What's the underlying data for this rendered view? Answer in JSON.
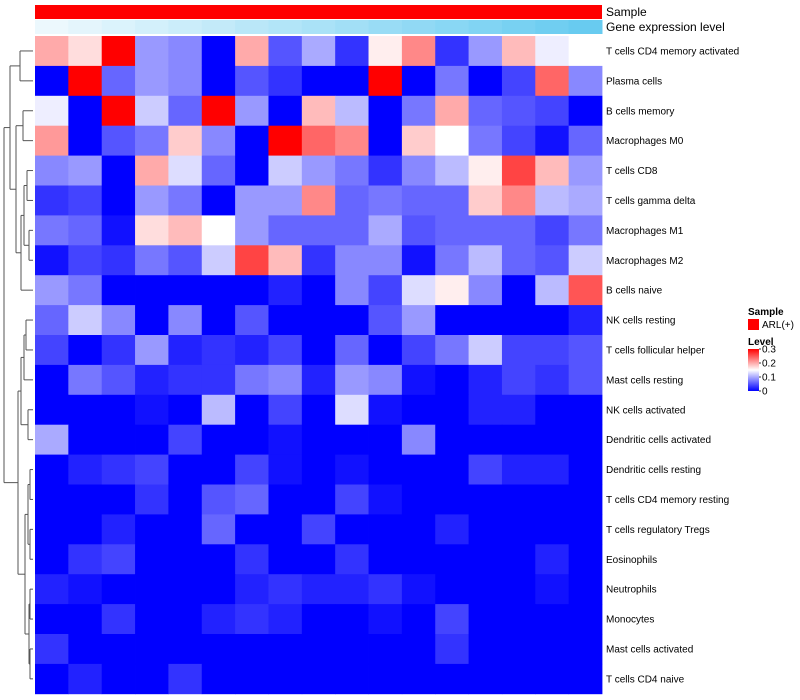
{
  "chart_data": {
    "type": "heatmap",
    "title": "",
    "annotation_rows": [
      {
        "label": "Sample",
        "color_key": "sample_bar"
      },
      {
        "label": "Gene expression level",
        "color_key": "expression_gradient"
      }
    ],
    "rows": [
      "T cells CD4 memory activated",
      "Plasma cells",
      "B cells memory",
      "Macrophages M0",
      "T cells CD8",
      "T cells gamma delta",
      "Macrophages M1",
      "Macrophages M2",
      "B cells naive",
      "NK cells resting",
      "T cells follicular helper",
      "Mast cells resting",
      "NK cells activated",
      "Dendritic cells activated",
      "Dendritic cells resting",
      "T cells CD4 memory resting",
      "T cells regulatory  Tregs",
      "Eosinophils",
      "Neutrophils",
      "Monocytes",
      "Mast cells activated",
      "T cells CD4 naive"
    ],
    "n_columns": 17,
    "values": [
      [
        0.2,
        0.17,
        0.3,
        0.09,
        0.08,
        0.0,
        0.2,
        0.05,
        0.1,
        0.03,
        0.16,
        0.22,
        0.03,
        0.09,
        0.19,
        0.14,
        0.15
      ],
      [
        0.0,
        0.3,
        0.06,
        0.09,
        0.08,
        0.0,
        0.05,
        0.03,
        0.0,
        0.0,
        0.3,
        0.0,
        0.07,
        0.0,
        0.04,
        0.24,
        0.08
      ],
      [
        0.14,
        0.0,
        0.3,
        0.12,
        0.06,
        0.3,
        0.09,
        0.0,
        0.19,
        0.11,
        0.0,
        0.07,
        0.2,
        0.06,
        0.05,
        0.04,
        0.0
      ],
      [
        0.21,
        0.0,
        0.05,
        0.07,
        0.18,
        0.08,
        0.0,
        0.3,
        0.24,
        0.22,
        0.0,
        0.18,
        0.15,
        0.07,
        0.04,
        0.01,
        0.06
      ],
      [
        0.08,
        0.09,
        0.0,
        0.2,
        0.13,
        0.06,
        0.0,
        0.12,
        0.09,
        0.07,
        0.03,
        0.08,
        0.11,
        0.16,
        0.26,
        0.19,
        0.09
      ],
      [
        0.03,
        0.04,
        0.0,
        0.09,
        0.07,
        0.0,
        0.09,
        0.09,
        0.22,
        0.06,
        0.07,
        0.06,
        0.06,
        0.18,
        0.22,
        0.11,
        0.1
      ],
      [
        0.07,
        0.06,
        0.01,
        0.17,
        0.19,
        0.15,
        0.09,
        0.06,
        0.06,
        0.06,
        0.1,
        0.05,
        0.06,
        0.06,
        0.06,
        0.04,
        0.07
      ],
      [
        0.01,
        0.04,
        0.03,
        0.07,
        0.05,
        0.12,
        0.26,
        0.19,
        0.03,
        0.08,
        0.08,
        0.01,
        0.07,
        0.11,
        0.06,
        0.05,
        0.12
      ],
      [
        0.09,
        0.07,
        0.0,
        0.0,
        0.0,
        0.0,
        0.0,
        0.02,
        0.0,
        0.08,
        0.04,
        0.13,
        0.16,
        0.08,
        0.0,
        0.11,
        0.25
      ],
      [
        0.06,
        0.12,
        0.08,
        0.0,
        0.08,
        0.0,
        0.05,
        0.0,
        0.0,
        0.0,
        0.05,
        0.09,
        0.0,
        0.0,
        0.0,
        0.0,
        0.02
      ],
      [
        0.04,
        0.0,
        0.03,
        0.09,
        0.02,
        0.03,
        0.02,
        0.04,
        0.0,
        0.06,
        0.0,
        0.04,
        0.07,
        0.12,
        0.04,
        0.04,
        0.05
      ],
      [
        0.0,
        0.07,
        0.05,
        0.02,
        0.03,
        0.03,
        0.07,
        0.08,
        0.02,
        0.09,
        0.08,
        0.01,
        0.0,
        0.02,
        0.04,
        0.03,
        0.05
      ],
      [
        0.0,
        0.0,
        0.0,
        0.01,
        0.0,
        0.11,
        0.0,
        0.04,
        0.0,
        0.13,
        0.01,
        0.0,
        0.0,
        0.02,
        0.02,
        0.0,
        0.0
      ],
      [
        0.1,
        0.0,
        0.0,
        0.0,
        0.04,
        0.0,
        0.0,
        0.01,
        0.0,
        0.0,
        0.0,
        0.08,
        0.0,
        0.0,
        0.0,
        0.0,
        0.0
      ],
      [
        0.0,
        0.02,
        0.03,
        0.04,
        0.0,
        0.0,
        0.04,
        0.01,
        0.0,
        0.01,
        0.0,
        0.0,
        0.0,
        0.04,
        0.02,
        0.02,
        0.0
      ],
      [
        0.0,
        0.0,
        0.0,
        0.03,
        0.0,
        0.05,
        0.06,
        0.0,
        0.0,
        0.04,
        0.01,
        0.0,
        0.0,
        0.0,
        0.0,
        0.0,
        0.0
      ],
      [
        0.0,
        0.0,
        0.02,
        0.0,
        0.0,
        0.06,
        0.0,
        0.0,
        0.04,
        0.0,
        0.0,
        0.0,
        0.02,
        0.0,
        0.0,
        0.0,
        0.0
      ],
      [
        0.0,
        0.03,
        0.04,
        0.0,
        0.0,
        0.0,
        0.03,
        0.0,
        0.0,
        0.03,
        0.0,
        0.0,
        0.0,
        0.0,
        0.0,
        0.02,
        0.0
      ],
      [
        0.02,
        0.01,
        0.0,
        0.0,
        0.0,
        0.0,
        0.02,
        0.03,
        0.02,
        0.02,
        0.03,
        0.01,
        0.0,
        0.0,
        0.0,
        0.01,
        0.0
      ],
      [
        0.0,
        0.0,
        0.03,
        0.0,
        0.0,
        0.02,
        0.03,
        0.02,
        0.0,
        0.0,
        0.01,
        0.0,
        0.04,
        0.0,
        0.0,
        0.0,
        0.0
      ],
      [
        0.03,
        0.0,
        0.0,
        0.0,
        0.0,
        0.0,
        0.0,
        0.0,
        0.0,
        0.0,
        0.0,
        0.0,
        0.03,
        0.0,
        0.0,
        0.0,
        0.0
      ],
      [
        0.0,
        0.02,
        0.0,
        0.0,
        0.03,
        0.0,
        0.0,
        0.0,
        0.0,
        0.0,
        0.0,
        0.0,
        0.0,
        0.0,
        0.0,
        0.0,
        0.0
      ]
    ],
    "expression_gradient": [
      0.05,
      0.1,
      0.15,
      0.2,
      0.25,
      0.3,
      0.35,
      0.4,
      0.45,
      0.5,
      0.55,
      0.6,
      0.65,
      0.7,
      0.75,
      0.8,
      0.85
    ],
    "value_range": [
      0,
      0.3
    ],
    "legend": {
      "sample_title": "Sample",
      "sample_item": "ARL(+)",
      "level_title": "Level",
      "level_ticks": [
        {
          "value": 0.3,
          "label": "0.3"
        },
        {
          "value": 0.2,
          "label": "0.2"
        },
        {
          "value": 0.1,
          "label": "0.1"
        },
        {
          "value": 0.0,
          "label": "0"
        }
      ]
    }
  },
  "colors": {
    "low": "#0000ff",
    "mid": "#ffffff",
    "high": "#ff0000",
    "sample_bar": "#ff0000",
    "expr_low": "#f4fbfe",
    "expr_high": "#4fc3ee",
    "dendro": "#555555"
  }
}
